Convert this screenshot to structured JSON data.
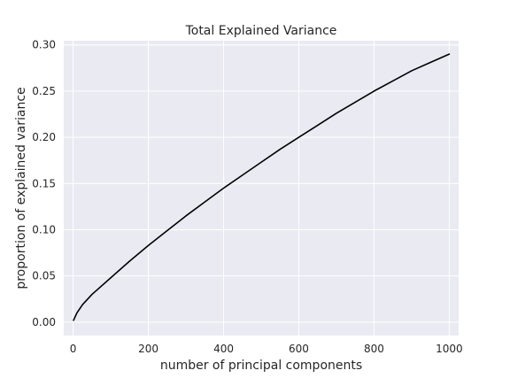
{
  "chart_data": {
    "type": "line",
    "title": "Total Explained Variance",
    "xlabel": "number of principal components",
    "ylabel": "proportion of explained variance",
    "xlim": [
      -25,
      1025
    ],
    "ylim": [
      -0.0145,
      0.3045
    ],
    "x_ticks": [
      0,
      200,
      400,
      600,
      800,
      1000
    ],
    "x_tick_labels": [
      "0",
      "200",
      "400",
      "600",
      "800",
      "1000"
    ],
    "y_ticks": [
      0.0,
      0.05,
      0.1,
      0.15,
      0.2,
      0.25,
      0.3
    ],
    "y_tick_labels": [
      "0.00",
      "0.05",
      "0.10",
      "0.15",
      "0.20",
      "0.25",
      "0.30"
    ],
    "grid": true,
    "background_color": "#eaeaf2",
    "grid_color": "#ffffff",
    "series": [
      {
        "color": "#000000",
        "x": [
          1,
          10,
          25,
          50,
          100,
          150,
          200,
          250,
          300,
          350,
          400,
          450,
          500,
          550,
          600,
          650,
          700,
          750,
          800,
          850,
          900,
          950,
          1000
        ],
        "y": [
          0.002,
          0.01,
          0.019,
          0.03,
          0.048,
          0.066,
          0.083,
          0.099,
          0.115,
          0.13,
          0.145,
          0.159,
          0.173,
          0.187,
          0.2,
          0.213,
          0.226,
          0.238,
          0.25,
          0.261,
          0.272,
          0.281,
          0.29
        ]
      }
    ]
  }
}
